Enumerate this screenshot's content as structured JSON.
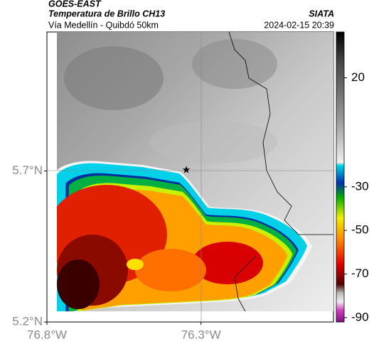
{
  "header": {
    "source": "GOES-EAST",
    "title": "Temperatura de Brillo CH13",
    "agency": "SIATA",
    "subtitle": "Vía Medellín - Quibdó 50km",
    "timestamp": "2024-02-15 20:39"
  },
  "map": {
    "xlim": [
      -76.8,
      -75.87
    ],
    "ylim": [
      5.2,
      6.16
    ],
    "xticks": [
      {
        "value": -76.8,
        "label": "76.8°W"
      },
      {
        "value": -76.3,
        "label": "76.3°W"
      }
    ],
    "yticks": [
      {
        "value": 5.7,
        "label": "5.7°N"
      },
      {
        "value": 5.2,
        "label": "5.2°N"
      }
    ]
  },
  "colorbar": {
    "lim": [
      -92,
      41
    ],
    "ticks": [
      20,
      -30,
      -50,
      -70,
      -90
    ]
  }
}
